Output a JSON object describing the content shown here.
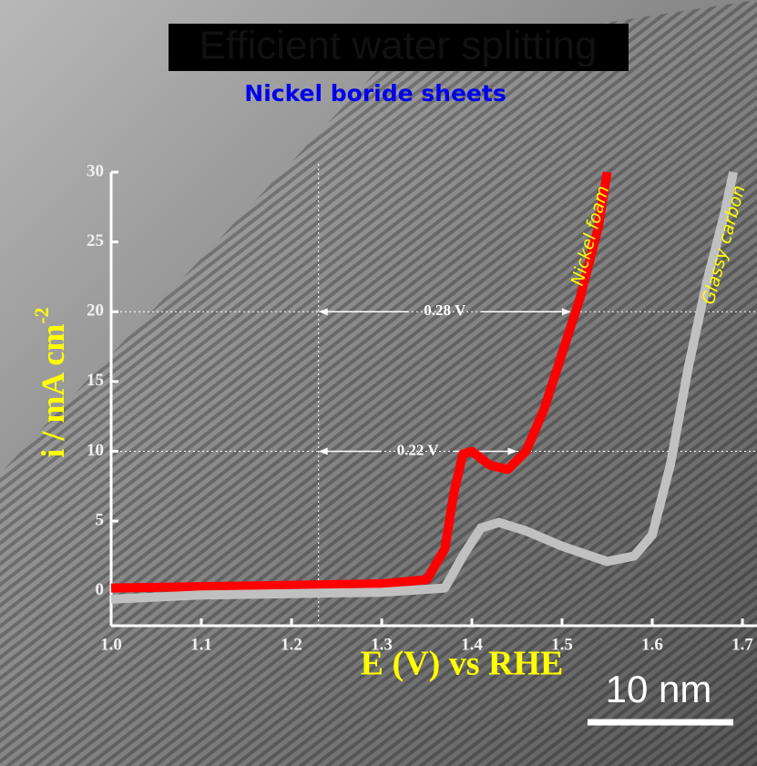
{
  "chart_data": {
    "type": "line",
    "title": "Efficient water splitting",
    "subtitle": "Nickel boride sheets",
    "ylabel": "i / mA cm",
    "ylabel_superscript": "-2",
    "xlabel": "E (V) vs RHE",
    "scale_bar": "10 nm",
    "xlim": [
      1.0,
      1.7
    ],
    "ylim": [
      -2.5,
      30
    ],
    "xticks": [
      {
        "value": 1.0,
        "label": "1.0"
      },
      1.1,
      1.2,
      1.3,
      1.4,
      1.5,
      1.6,
      1.7
    ],
    "yticks": [
      0,
      5,
      10,
      15,
      20,
      25,
      30
    ],
    "hlines": [
      10,
      20
    ],
    "vline": 1.23,
    "annotations": [
      {
        "text": "0.28 V",
        "x_start": 1.23,
        "x_end": 1.51,
        "y": 20
      },
      {
        "text": "0.22 V",
        "x_start": 1.23,
        "x_end": 1.45,
        "y": 10
      }
    ],
    "series": [
      {
        "name": "Nickel foam",
        "color": "#ff0000",
        "x": [
          1.0,
          1.1,
          1.2,
          1.3,
          1.35,
          1.37,
          1.38,
          1.39,
          1.4,
          1.42,
          1.44,
          1.46,
          1.48,
          1.5,
          1.52,
          1.54,
          1.55
        ],
        "values": [
          0.2,
          0.3,
          0.4,
          0.5,
          0.8,
          3,
          7,
          9.8,
          10,
          9,
          8.7,
          10,
          13,
          17,
          21,
          26,
          30
        ]
      },
      {
        "name": "Glassy carbon",
        "color": "#c0c0c0",
        "x": [
          1.0,
          1.1,
          1.2,
          1.3,
          1.37,
          1.39,
          1.41,
          1.43,
          1.46,
          1.5,
          1.55,
          1.58,
          1.6,
          1.62,
          1.64,
          1.66,
          1.68,
          1.69
        ],
        "values": [
          -0.6,
          -0.3,
          -0.2,
          -0.1,
          0.2,
          2.5,
          4.5,
          4.9,
          4.3,
          3.2,
          2.1,
          2.5,
          4,
          9,
          16,
          22,
          27,
          30
        ]
      }
    ]
  }
}
